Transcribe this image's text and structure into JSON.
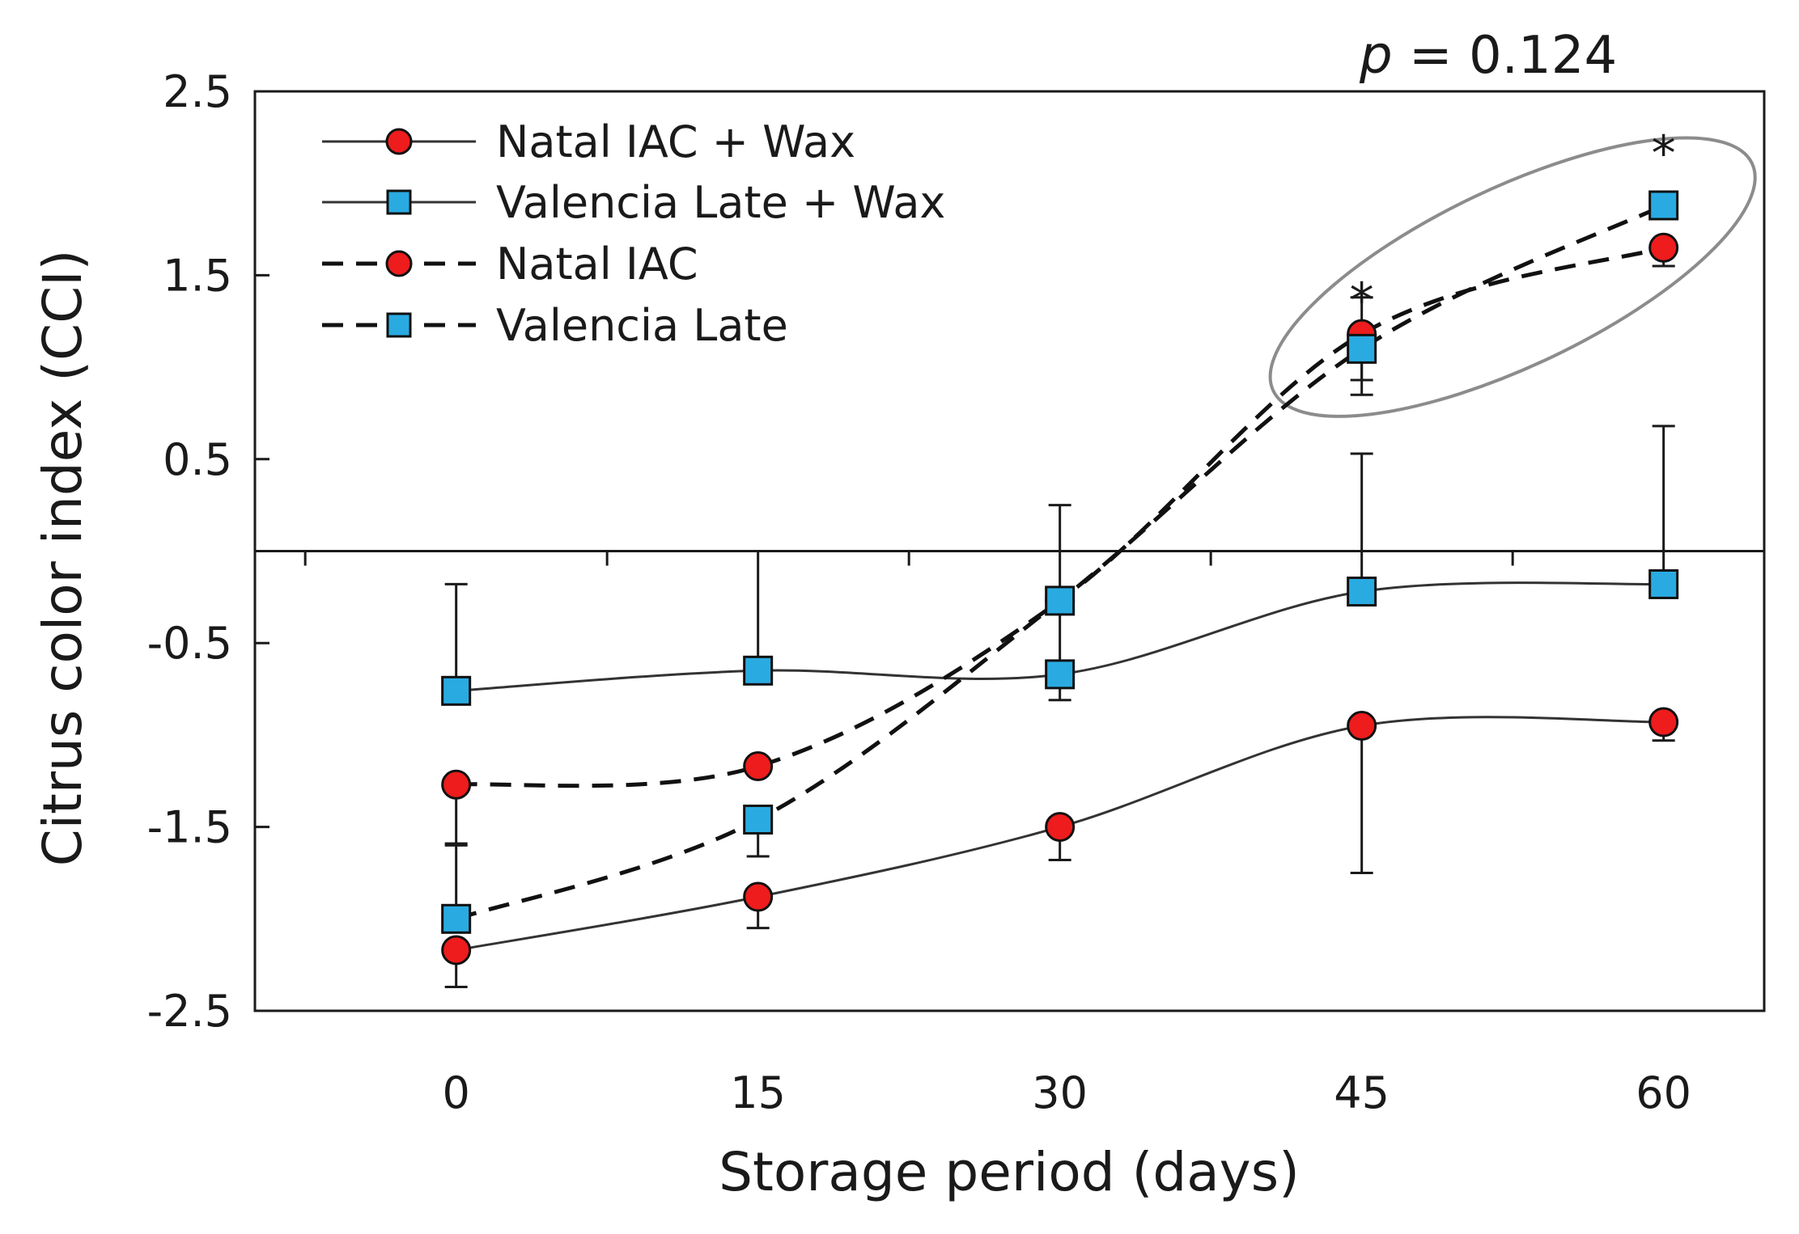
{
  "chart_data": {
    "type": "line",
    "annotation_p": "p = 0.124",
    "annotation_p_prefix": "p",
    "annotation_p_value": " = 0.124",
    "ylabel": "Citrus color index (CCI)",
    "xlabel": "Storage period (days)",
    "x": [
      0,
      15,
      30,
      45,
      60
    ],
    "x_tick_labels": [
      "0",
      "15",
      "30",
      "45",
      "60"
    ],
    "ylim": [
      -2.5,
      2.5
    ],
    "y_ticks": [
      2.5,
      1.5,
      0.5,
      -0.5,
      -1.5,
      -2.5
    ],
    "y_tick_labels": [
      "2.5",
      "1.5",
      "0.5",
      "-0.5",
      "-1.5",
      "-2.5"
    ],
    "zero_line": 0,
    "xlim": [
      -10,
      65
    ],
    "significance_marks": [
      {
        "x": 45,
        "y": 1.45,
        "text": "*"
      },
      {
        "x": 60,
        "y": 2.25,
        "text": "*"
      }
    ],
    "series": [
      {
        "name": "Natal IAC + Wax",
        "marker": "circle",
        "line": "solid",
        "color": "#ee1c1c",
        "values": [
          -2.17,
          -1.88,
          -1.5,
          -0.95,
          -0.93
        ],
        "err_up": [
          0.0,
          0.0,
          0.0,
          0.0,
          0.0
        ],
        "err_down": [
          0.2,
          0.17,
          0.18,
          0.8,
          0.1
        ]
      },
      {
        "name": "Valencia Late + Wax",
        "marker": "square",
        "line": "solid",
        "color": "#29abe2",
        "values": [
          -0.76,
          -0.65,
          -0.67,
          -0.22,
          -0.18
        ],
        "err_up": [
          0.58,
          0.65,
          0.92,
          0.75,
          0.86
        ],
        "err_down": [
          0.0,
          0.0,
          0.14,
          0.0,
          0.0
        ]
      },
      {
        "name": "Natal IAC",
        "marker": "circle",
        "line": "dashed",
        "color": "#ee1c1c",
        "values": [
          -1.27,
          -1.17,
          -0.27,
          1.18,
          1.65
        ],
        "err_up": [
          0.0,
          0.0,
          0.0,
          0.2,
          0.0
        ],
        "err_down": [
          0.32,
          0.0,
          0.0,
          0.25,
          0.1
        ]
      },
      {
        "name": "Valencia Late",
        "marker": "square",
        "line": "dashed",
        "color": "#29abe2",
        "values": [
          -2.0,
          -1.46,
          -0.27,
          1.1,
          1.88
        ],
        "err_up": [
          0.4,
          0.0,
          0.0,
          0.0,
          0.0
        ],
        "err_down": [
          0.0,
          0.2,
          0.0,
          0.25,
          0.0
        ]
      }
    ],
    "highlight_ellipse": {
      "around_x": [
        45,
        60
      ],
      "stroke": "#8c8c8c"
    }
  }
}
